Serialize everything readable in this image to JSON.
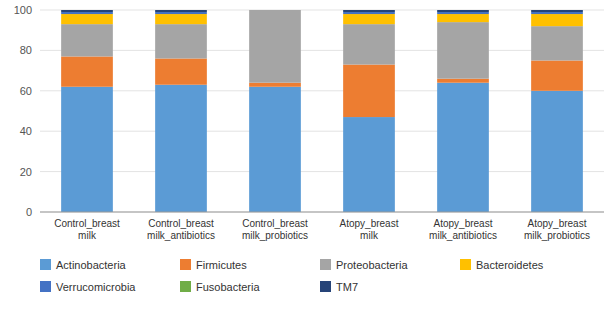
{
  "chart_data": {
    "type": "bar",
    "stacked": true,
    "grid": true,
    "legend": "bottom",
    "categories": [
      "Control_breast\nmilk",
      "Control_breast\nmilk_antibiotics",
      "Control_breast\nmilk_probiotics",
      "Atopy_breast\nmilk",
      "Atopy_breast\nmilk_antibiotics",
      "Atopy_breast\nmilk_probiotics"
    ],
    "series": [
      {
        "name": "Actinobacteria",
        "color": "#5B9BD5",
        "values": [
          62,
          63,
          62,
          47,
          64,
          60
        ]
      },
      {
        "name": "Firmicutes",
        "color": "#ED7D31",
        "values": [
          15,
          13,
          2,
          26,
          2,
          15
        ]
      },
      {
        "name": "Proteobacteria",
        "color": "#A5A5A5",
        "values": [
          16,
          17,
          36,
          20,
          28,
          17
        ]
      },
      {
        "name": "Bacteroidetes",
        "color": "#FFC000",
        "values": [
          5,
          5,
          0,
          5,
          4,
          6
        ]
      },
      {
        "name": "Verrucomicrobia",
        "color": "#4472C4",
        "values": [
          1,
          1,
          0,
          1,
          1,
          1
        ]
      },
      {
        "name": "Fusobacteria",
        "color": "#70AD47",
        "values": [
          0,
          0,
          0,
          0,
          0,
          0
        ]
      },
      {
        "name": "TM7",
        "color": "#264478",
        "values": [
          1,
          1,
          0,
          1,
          1,
          1
        ]
      }
    ],
    "ylim": [
      0,
      100
    ],
    "yticks": [
      0,
      20,
      40,
      60,
      80,
      100
    ]
  }
}
